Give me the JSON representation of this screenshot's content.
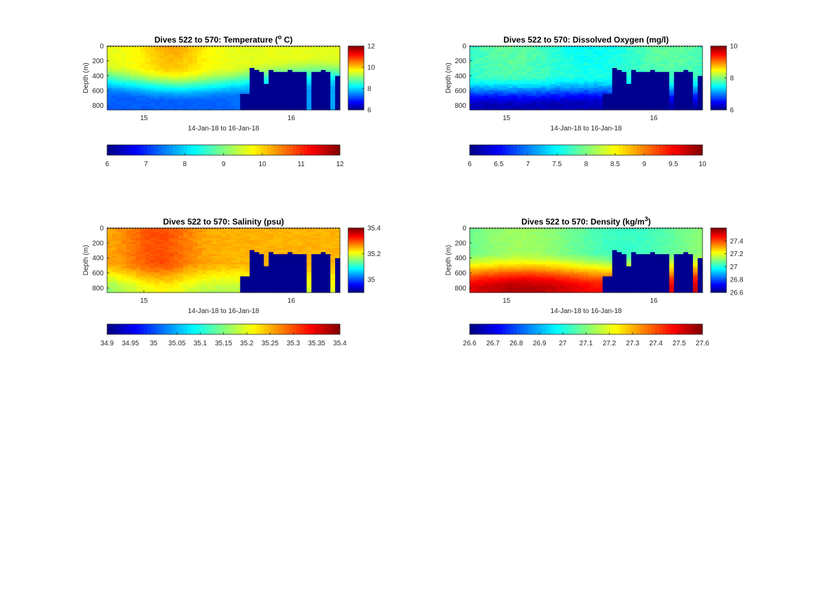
{
  "chart_data": [
    {
      "type": "heatmap",
      "title_prefix": "Dives 522 to 570: Temperature (",
      "title_sup": "o",
      "title_suffix": " C)",
      "ylabel": "Depth (m)",
      "xlabel": "14-Jan-18 to 16-Jan-18",
      "x_ticks": [
        "15",
        "16"
      ],
      "x_tick_pos": [
        0.75,
        1.75
      ],
      "x_range": [
        0.5,
        2.08
      ],
      "y_ticks": [
        0,
        200,
        400,
        600,
        800
      ],
      "y_range": [
        0,
        860
      ],
      "side_colorbar": {
        "ticks": [
          6,
          8,
          10,
          12
        ],
        "range": [
          6,
          12
        ]
      },
      "h_colorbar": {
        "ticks": [
          "6",
          "7",
          "8",
          "9",
          "10",
          "11",
          "12"
        ],
        "range": [
          6,
          12
        ]
      }
    },
    {
      "type": "heatmap",
      "title_prefix": "Dives 522 to 570: Dissolved Oxygen (mg/l)",
      "title_sup": "",
      "title_suffix": "",
      "ylabel": "Depth (m)",
      "xlabel": "14-Jan-18 to 16-Jan-18",
      "x_ticks": [
        "15",
        "16"
      ],
      "x_tick_pos": [
        0.75,
        1.75
      ],
      "x_range": [
        0.5,
        2.08
      ],
      "y_ticks": [
        0,
        200,
        400,
        600,
        800
      ],
      "y_range": [
        0,
        860
      ],
      "side_colorbar": {
        "ticks": [
          6,
          8,
          10
        ],
        "range": [
          6,
          10
        ]
      },
      "h_colorbar": {
        "ticks": [
          "6",
          "6.5",
          "7",
          "7.5",
          "8",
          "8.5",
          "9",
          "9.5",
          "10"
        ],
        "range": [
          6,
          10
        ]
      }
    },
    {
      "type": "heatmap",
      "title_prefix": "Dives 522 to 570: Salinity (psu)",
      "title_sup": "",
      "title_suffix": "",
      "ylabel": "Depth (m)",
      "xlabel": "14-Jan-18 to 16-Jan-18",
      "x_ticks": [
        "15",
        "16"
      ],
      "x_tick_pos": [
        0.75,
        1.75
      ],
      "x_range": [
        0.5,
        2.08
      ],
      "y_ticks": [
        0,
        200,
        400,
        600,
        800
      ],
      "y_range": [
        0,
        860
      ],
      "side_colorbar": {
        "ticks": [
          35,
          35.2,
          35.4
        ],
        "range": [
          34.9,
          35.4
        ]
      },
      "h_colorbar": {
        "ticks": [
          "34.9",
          "34.95",
          "35",
          "35.05",
          "35.1",
          "35.15",
          "35.2",
          "35.25",
          "35.3",
          "35.35",
          "35.4"
        ],
        "range": [
          34.9,
          35.4
        ]
      }
    },
    {
      "type": "heatmap",
      "title_prefix": "Dives 522 to 570: Density (kg/m",
      "title_sup": "3",
      "title_suffix": ")",
      "ylabel": "Depth (m)",
      "xlabel": "14-Jan-18 to 16-Jan-18",
      "x_ticks": [
        "15",
        "16"
      ],
      "x_tick_pos": [
        0.75,
        1.75
      ],
      "x_range": [
        0.5,
        2.08
      ],
      "y_ticks": [
        0,
        200,
        400,
        600,
        800
      ],
      "y_range": [
        0,
        860
      ],
      "side_colorbar": {
        "ticks": [
          26.6,
          26.8,
          27,
          27.2,
          27.4
        ],
        "range": [
          26.6,
          27.6
        ]
      },
      "h_colorbar": {
        "ticks": [
          "26.6",
          "26.7",
          "26.8",
          "26.9",
          "27",
          "27.1",
          "27.2",
          "27.3",
          "27.4",
          "27.5",
          "27.6"
        ],
        "range": [
          26.6,
          27.6
        ]
      }
    }
  ],
  "colormap": "jet"
}
